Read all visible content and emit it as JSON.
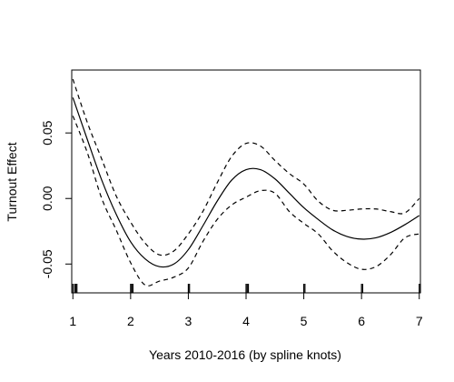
{
  "chart_data": {
    "type": "line",
    "title": "",
    "xlabel": "Years 2010-2016 (by spline knots)",
    "ylabel": "Turnout Effect",
    "xlim": [
      0.98,
      7.02
    ],
    "ylim": [
      -0.072,
      0.098
    ],
    "x_ticks": [
      1,
      2,
      3,
      4,
      5,
      6,
      7
    ],
    "x_tick_labels": [
      "1",
      "2",
      "3",
      "4",
      "5",
      "6",
      "7"
    ],
    "y_ticks": [
      -0.05,
      0.0,
      0.05
    ],
    "y_tick_labels": [
      "-0.05",
      "0.00",
      "0.05"
    ],
    "grid": false,
    "legend": "none",
    "rug_x": [
      1.0,
      1.03,
      1.05,
      1.07,
      2.0,
      2.02,
      2.04,
      3.0,
      3.02,
      4.0,
      4.02,
      4.04,
      5.0,
      5.02,
      6.0,
      6.02,
      7.0,
      7.02
    ],
    "series": [
      {
        "role": "estimate",
        "style": "solid",
        "x": [
          1.0,
          1.25,
          1.5,
          1.75,
          2.0,
          2.25,
          2.5,
          2.75,
          3.0,
          3.25,
          3.5,
          3.75,
          4.0,
          4.25,
          4.5,
          4.75,
          5.0,
          5.25,
          5.5,
          5.75,
          6.0,
          6.25,
          6.5,
          6.75,
          7.0
        ],
        "y": [
          0.077,
          0.045,
          0.014,
          -0.012,
          -0.033,
          -0.046,
          -0.052,
          -0.05,
          -0.039,
          -0.021,
          -0.002,
          0.014,
          0.022,
          0.022,
          0.015,
          0.004,
          -0.007,
          -0.016,
          -0.024,
          -0.029,
          -0.031,
          -0.03,
          -0.026,
          -0.02,
          -0.013
        ]
      },
      {
        "role": "upper",
        "style": "dashed",
        "x": [
          1.0,
          1.25,
          1.5,
          1.75,
          2.0,
          2.25,
          2.5,
          2.75,
          3.0,
          3.25,
          3.5,
          3.75,
          4.0,
          4.25,
          4.5,
          4.75,
          5.0,
          5.25,
          5.5,
          5.75,
          6.0,
          6.25,
          6.5,
          6.75,
          7.0
        ],
        "y": [
          0.091,
          0.058,
          0.03,
          0.002,
          -0.018,
          -0.034,
          -0.043,
          -0.04,
          -0.027,
          -0.01,
          0.012,
          0.032,
          0.042,
          0.04,
          0.029,
          0.019,
          0.011,
          -0.002,
          -0.009,
          -0.009,
          -0.008,
          -0.008,
          -0.01,
          -0.011,
          0.0
        ]
      },
      {
        "role": "lower",
        "style": "dashed",
        "x": [
          1.0,
          1.25,
          1.5,
          1.75,
          2.0,
          2.25,
          2.5,
          2.75,
          3.0,
          3.25,
          3.5,
          3.75,
          4.0,
          4.25,
          4.5,
          4.75,
          5.0,
          5.25,
          5.5,
          5.75,
          6.0,
          6.25,
          6.5,
          6.75,
          7.0
        ],
        "y": [
          0.063,
          0.035,
          0.0,
          -0.024,
          -0.049,
          -0.066,
          -0.063,
          -0.06,
          -0.053,
          -0.033,
          -0.016,
          -0.005,
          0.001,
          0.006,
          0.004,
          -0.01,
          -0.019,
          -0.027,
          -0.04,
          -0.049,
          -0.054,
          -0.052,
          -0.043,
          -0.03,
          -0.027
        ]
      }
    ]
  }
}
